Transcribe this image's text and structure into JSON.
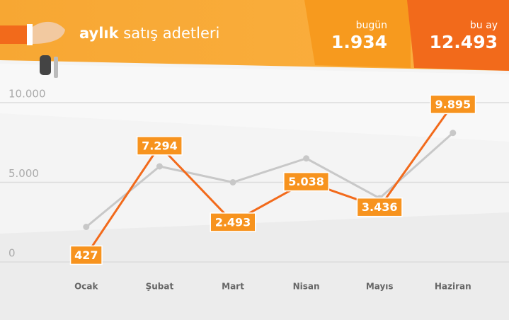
{
  "header": {
    "title_bold": "aylık",
    "title": "satış adetleri",
    "stats": [
      {
        "label": "bugün",
        "value": "1.934"
      },
      {
        "label": "bu ay",
        "value": "12.493"
      }
    ]
  },
  "chart_data": {
    "type": "line",
    "categories": [
      "Ocak",
      "Şubat",
      "Mart",
      "Nisan",
      "Mayıs",
      "Haziran"
    ],
    "series": [
      {
        "color": "#c8c8c8",
        "values": [
          2200,
          6000,
          5000,
          6500,
          4000,
          8100
        ]
      },
      {
        "color": "#f26a1b",
        "values": [
          427,
          7294,
          2493,
          5038,
          3436,
          9895
        ],
        "value_labels": [
          "427",
          "7.294",
          "2.493",
          "5.038",
          "3.436",
          "9.895"
        ],
        "label_color": "#f7931e"
      }
    ],
    "ylim": [
      0,
      10000
    ],
    "yticks": [
      {
        "value": 0,
        "label": "0"
      },
      {
        "value": 5000,
        "label": "5.000"
      },
      {
        "value": 10000,
        "label": "10.000"
      }
    ],
    "grid": true
  }
}
